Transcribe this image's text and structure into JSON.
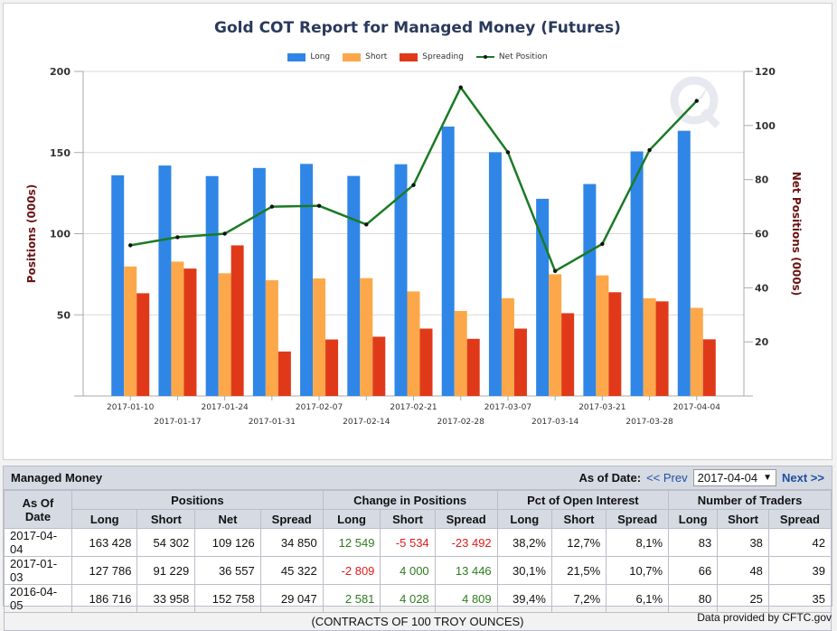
{
  "chart_data": {
    "type": "bar+line",
    "title": "Gold COT Report for Managed Money (Futures)",
    "xlabel": "",
    "ylabel": "Positions (000s)",
    "y2label": "Net Positions (000s)",
    "ylim": [
      0,
      200
    ],
    "y2lim": [
      0,
      120
    ],
    "yticks": [
      50,
      100,
      150,
      200
    ],
    "y2ticks": [
      20,
      40,
      60,
      80,
      100,
      120
    ],
    "grid": true,
    "legend_position": "top-center",
    "categories": [
      "2017-01-10",
      "2017-01-17",
      "2017-01-24",
      "2017-01-31",
      "2017-02-07",
      "2017-02-14",
      "2017-02-21",
      "2017-02-28",
      "2017-03-07",
      "2017-03-14",
      "2017-03-21",
      "2017-03-28",
      "2017-04-04"
    ],
    "series": [
      {
        "name": "Long",
        "type": "bar",
        "axis": "left",
        "color": "#2f86e6",
        "values": [
          136,
          142,
          135.5,
          140.5,
          143,
          135.6,
          142.8,
          166,
          150.2,
          121.5,
          130.6,
          150.7,
          163.4
        ]
      },
      {
        "name": "Short",
        "type": "bar",
        "axis": "left",
        "color": "#fca84a",
        "values": [
          79.8,
          82.8,
          75.6,
          71.3,
          72.4,
          72.6,
          64.4,
          52.4,
          60.2,
          75,
          74.3,
          60.2,
          54.3
        ]
      },
      {
        "name": "Spreading",
        "type": "bar",
        "axis": "left",
        "color": "#e0391a",
        "values": [
          63.3,
          78.5,
          92.8,
          27.4,
          34.8,
          36.5,
          41.5,
          35.2,
          41.5,
          51,
          63.9,
          58.3,
          34.9
        ]
      },
      {
        "name": "Net Position",
        "type": "line",
        "axis": "right",
        "color": "#1a7a25",
        "values": [
          55.7,
          58.7,
          60,
          70,
          70.3,
          63.4,
          78,
          114.1,
          90.1,
          46.2,
          56.2,
          90.9,
          109.1
        ]
      }
    ]
  },
  "table": {
    "title": "Managed Money",
    "as_of_label": "As of Date:",
    "prev_label": "<< Prev",
    "next_label": "Next >>",
    "selected_date": "2017-04-04",
    "dropdown_icon": "▼",
    "group_headers": {
      "date": "As Of Date",
      "positions": "Positions",
      "change": "Change in Positions",
      "pct": "Pct of Open Interest",
      "traders": "Number of Traders"
    },
    "sub_headers": [
      "Long",
      "Short",
      "Net",
      "Spread",
      "Long",
      "Short",
      "Spread",
      "Long",
      "Short",
      "Spread",
      "Long",
      "Short",
      "Spread"
    ],
    "rows": [
      {
        "date": "2017-04-04",
        "pos_long": "163 428",
        "pos_short": "54 302",
        "pos_net": "109 126",
        "pos_spread": "34 850",
        "chg_long": "12 549",
        "chg_short": "-5 534",
        "chg_spread": "-23 492",
        "pct_long": "38,2%",
        "pct_short": "12,7%",
        "pct_spread": "8,1%",
        "tr_long": "83",
        "tr_short": "38",
        "tr_spread": "42"
      },
      {
        "date": "2017-01-03",
        "pos_long": "127 786",
        "pos_short": "91 229",
        "pos_net": "36 557",
        "pos_spread": "45 322",
        "chg_long": "-2 809",
        "chg_short": "4 000",
        "chg_spread": "13 446",
        "pct_long": "30,1%",
        "pct_short": "21,5%",
        "pct_spread": "10,7%",
        "tr_long": "66",
        "tr_short": "48",
        "tr_spread": "39"
      },
      {
        "date": "2016-04-05",
        "pos_long": "186 716",
        "pos_short": "33 958",
        "pos_net": "152 758",
        "pos_spread": "29 047",
        "chg_long": "2 581",
        "chg_short": "4 028",
        "chg_spread": "4 809",
        "pct_long": "39,4%",
        "pct_short": "7,2%",
        "pct_spread": "6,1%",
        "tr_long": "80",
        "tr_short": "25",
        "tr_spread": "35"
      }
    ],
    "footer_note": "(CONTRACTS OF 100 TROY OUNCES)"
  },
  "credit": "Data provided by CFTC.gov"
}
